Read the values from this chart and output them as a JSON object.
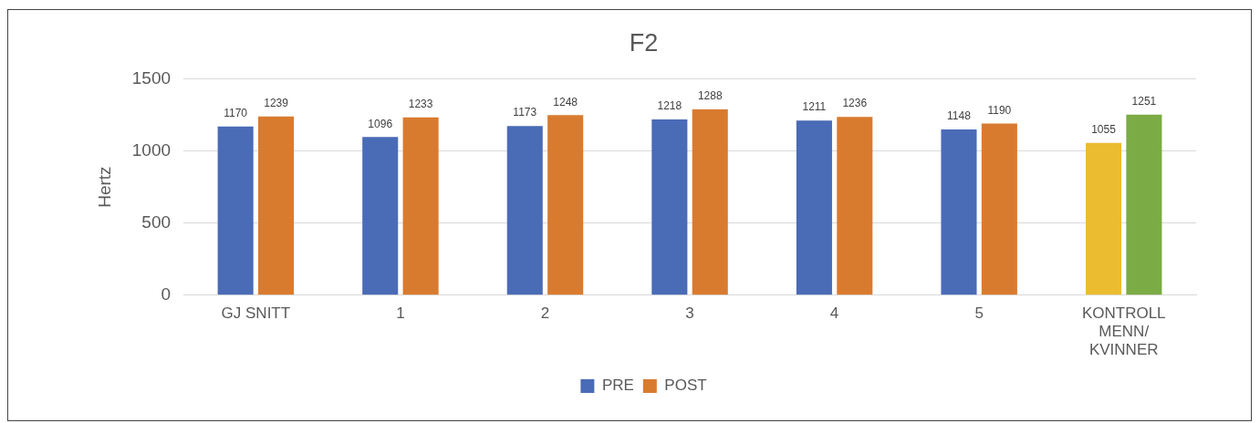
{
  "chart_data": {
    "type": "bar",
    "title": "F2",
    "ylabel": "Hertz",
    "categories": [
      "GJ SNITT",
      "1",
      "2",
      "3",
      "4",
      "5",
      "KONTROLL MENN/ KVINNER"
    ],
    "series": [
      {
        "name": "PRE",
        "color": "#4a6bb6",
        "colors": [
          "#4a6bb6",
          "#4a6bb6",
          "#4a6bb6",
          "#4a6bb6",
          "#4a6bb6",
          "#4a6bb6",
          "#ebbc2f"
        ],
        "values": [
          1170,
          1096,
          1173,
          1218,
          1211,
          1148,
          1055
        ]
      },
      {
        "name": "POST",
        "color": "#d97b2f",
        "colors": [
          "#d97b2f",
          "#d97b2f",
          "#d97b2f",
          "#d97b2f",
          "#d97b2f",
          "#d97b2f",
          "#7bab45"
        ],
        "values": [
          1239,
          1233,
          1248,
          1288,
          1236,
          1190,
          1251
        ]
      }
    ],
    "ylim": [
      0,
      1500
    ],
    "yticks": [
      0,
      500,
      1000,
      1500
    ],
    "grid": "y",
    "legend": "bottom",
    "data_labels": true
  }
}
